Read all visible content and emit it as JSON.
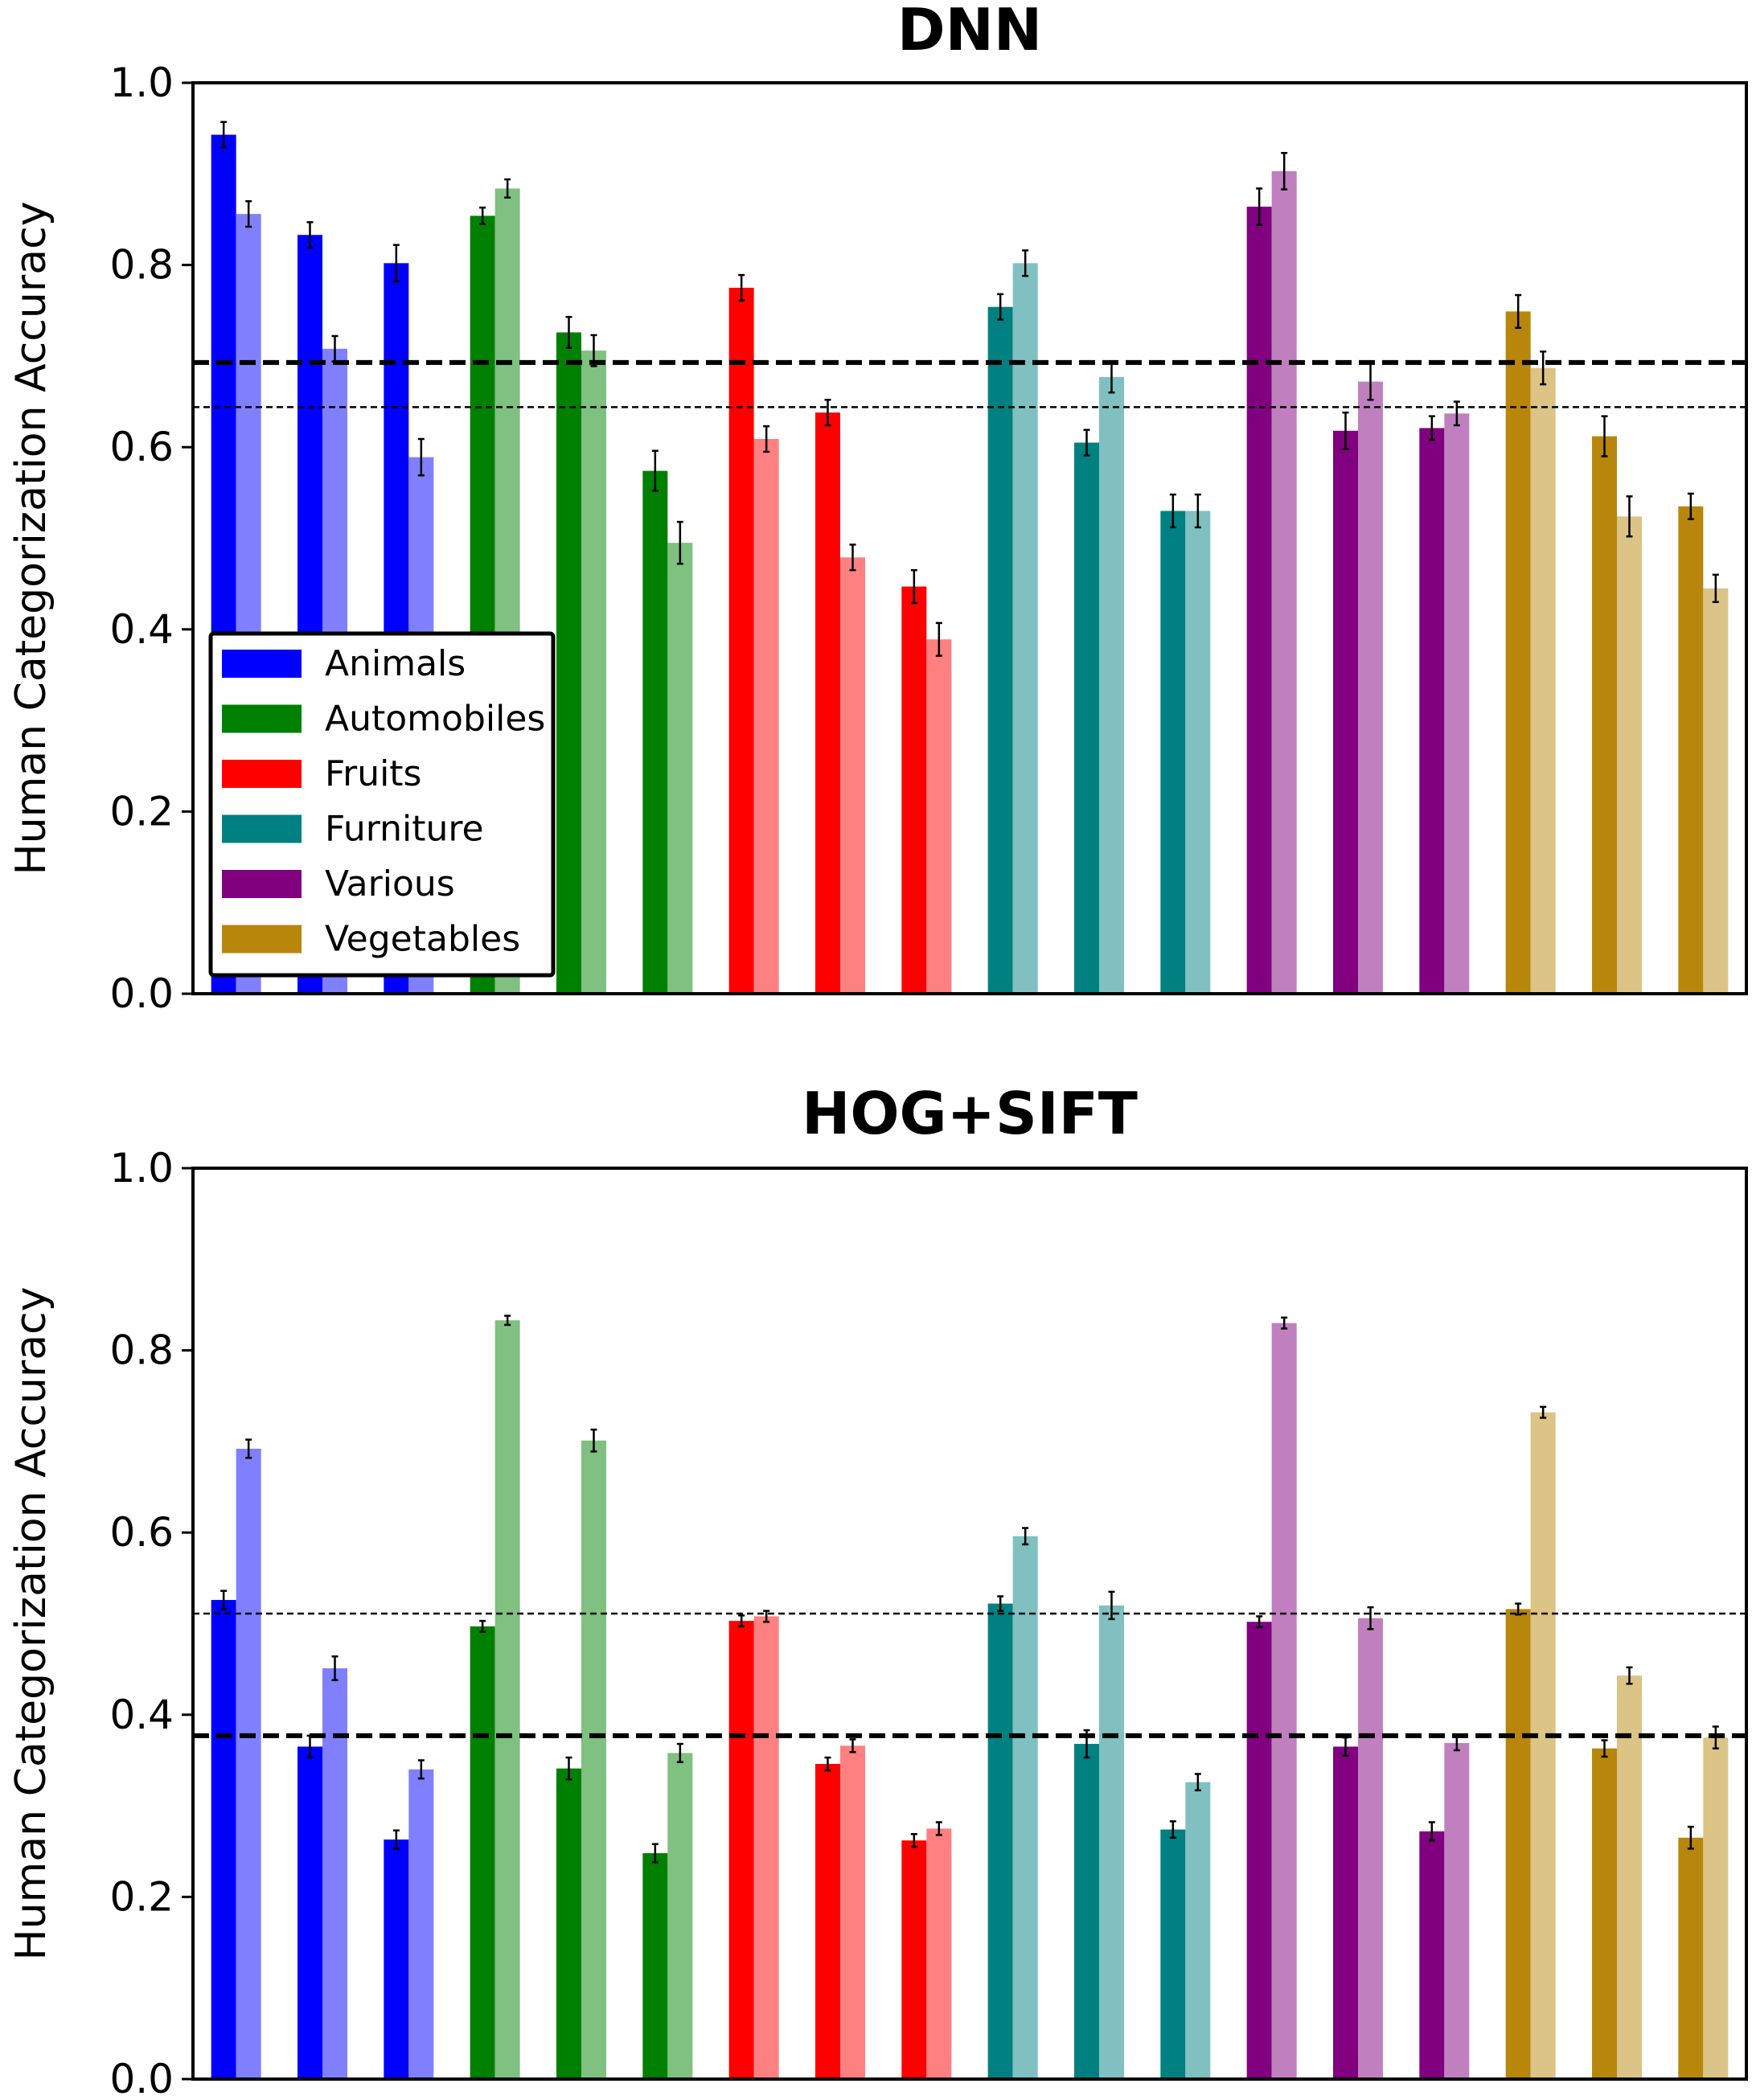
{
  "chart_data": [
    {
      "type": "bar",
      "title": "DNN",
      "xlabel": "",
      "ylabel": "Human Categorization Accuracy",
      "ylim": [
        0,
        1.0
      ],
      "yticks": [
        "0.0",
        "0.2",
        "0.4",
        "0.6",
        "0.8",
        "1.0"
      ],
      "grid": false,
      "legend": {
        "position": "bottom-left",
        "entries": [
          {
            "label": "Animals",
            "color": "#0000ff"
          },
          {
            "label": "Automobiles",
            "color": "#008000"
          },
          {
            "label": "Fruits",
            "color": "#ff0000"
          },
          {
            "label": "Furniture",
            "color": "#008080"
          },
          {
            "label": "Various",
            "color": "#800080"
          },
          {
            "label": "Vegetables",
            "color": "#b8860b"
          }
        ]
      },
      "reference_lines": [
        {
          "name": "thick dashed",
          "value": 0.693
        },
        {
          "name": "thin dashed",
          "value": 0.644
        }
      ],
      "groups": [
        {
          "category": "Animals",
          "color": "#0000ff",
          "light_color": "#8080ff",
          "values": [
            0.943,
            0.856
          ],
          "errors": [
            0.014,
            0.014
          ]
        },
        {
          "category": "Animals",
          "color": "#0000ff",
          "light_color": "#8080ff",
          "values": [
            0.833,
            0.708
          ],
          "errors": [
            0.014,
            0.014
          ]
        },
        {
          "category": "Animals",
          "color": "#0000ff",
          "light_color": "#8080ff",
          "values": [
            0.802,
            0.589
          ],
          "errors": [
            0.02,
            0.02
          ]
        },
        {
          "category": "Automobiles",
          "color": "#008000",
          "light_color": "#80c080",
          "values": [
            0.854,
            0.884
          ],
          "errors": [
            0.009,
            0.01
          ]
        },
        {
          "category": "Automobiles",
          "color": "#008000",
          "light_color": "#80c080",
          "values": [
            0.726,
            0.706
          ],
          "errors": [
            0.017,
            0.017
          ]
        },
        {
          "category": "Automobiles",
          "color": "#008000",
          "light_color": "#80c080",
          "values": [
            0.574,
            0.495
          ],
          "errors": [
            0.022,
            0.023
          ]
        },
        {
          "category": "Fruits",
          "color": "#ff0000",
          "light_color": "#ff8080",
          "values": [
            0.775,
            0.609
          ],
          "errors": [
            0.014,
            0.014
          ]
        },
        {
          "category": "Fruits",
          "color": "#ff0000",
          "light_color": "#ff8080",
          "values": [
            0.638,
            0.479
          ],
          "errors": [
            0.014,
            0.014
          ]
        },
        {
          "category": "Fruits",
          "color": "#ff0000",
          "light_color": "#ff8080",
          "values": [
            0.447,
            0.389
          ],
          "errors": [
            0.018,
            0.018
          ]
        },
        {
          "category": "Furniture",
          "color": "#008080",
          "light_color": "#80c0c0",
          "values": [
            0.754,
            0.802
          ],
          "errors": [
            0.014,
            0.014
          ]
        },
        {
          "category": "Furniture",
          "color": "#008080",
          "light_color": "#80c0c0",
          "values": [
            0.605,
            0.677
          ],
          "errors": [
            0.014,
            0.017
          ]
        },
        {
          "category": "Furniture",
          "color": "#008080",
          "light_color": "#80c0c0",
          "values": [
            0.53,
            0.53
          ],
          "errors": [
            0.018,
            0.018
          ]
        },
        {
          "category": "Various",
          "color": "#800080",
          "light_color": "#c080c0",
          "values": [
            0.864,
            0.903
          ],
          "errors": [
            0.02,
            0.02
          ]
        },
        {
          "category": "Various",
          "color": "#800080",
          "light_color": "#c080c0",
          "values": [
            0.618,
            0.672
          ],
          "errors": [
            0.02,
            0.02
          ]
        },
        {
          "category": "Various",
          "color": "#800080",
          "light_color": "#c080c0",
          "values": [
            0.621,
            0.637
          ],
          "errors": [
            0.013,
            0.013
          ]
        },
        {
          "category": "Vegetables",
          "color": "#b8860b",
          "light_color": "#dcc386",
          "values": [
            0.749,
            0.687
          ],
          "errors": [
            0.018,
            0.018
          ]
        },
        {
          "category": "Vegetables",
          "color": "#b8860b",
          "light_color": "#dcc386",
          "values": [
            0.612,
            0.524
          ],
          "errors": [
            0.022,
            0.022
          ]
        },
        {
          "category": "Vegetables",
          "color": "#b8860b",
          "light_color": "#dcc386",
          "values": [
            0.535,
            0.445
          ],
          "errors": [
            0.014,
            0.015
          ]
        }
      ]
    },
    {
      "type": "bar",
      "title": "HOG+SIFT",
      "xlabel": "",
      "ylabel": "Human Categorization Accuracy",
      "ylim": [
        0,
        1.0
      ],
      "yticks": [
        "0.0",
        "0.2",
        "0.4",
        "0.6",
        "0.8",
        "1.0"
      ],
      "grid": false,
      "reference_lines": [
        {
          "name": "thin dashed",
          "value": 0.511
        },
        {
          "name": "thick dashed",
          "value": 0.377
        }
      ],
      "groups": [
        {
          "category": "Animals",
          "color": "#0000ff",
          "light_color": "#8080ff",
          "values": [
            0.526,
            0.692
          ],
          "errors": [
            0.01,
            0.01
          ]
        },
        {
          "category": "Animals",
          "color": "#0000ff",
          "light_color": "#8080ff",
          "values": [
            0.365,
            0.451
          ],
          "errors": [
            0.012,
            0.013
          ]
        },
        {
          "category": "Animals",
          "color": "#0000ff",
          "light_color": "#8080ff",
          "values": [
            0.263,
            0.34
          ],
          "errors": [
            0.01,
            0.01
          ]
        },
        {
          "category": "Automobiles",
          "color": "#008000",
          "light_color": "#80c080",
          "values": [
            0.497,
            0.833
          ],
          "errors": [
            0.006,
            0.005
          ]
        },
        {
          "category": "Automobiles",
          "color": "#008000",
          "light_color": "#80c080",
          "values": [
            0.341,
            0.701
          ],
          "errors": [
            0.012,
            0.012
          ]
        },
        {
          "category": "Automobiles",
          "color": "#008000",
          "light_color": "#80c080",
          "values": [
            0.248,
            0.358
          ],
          "errors": [
            0.01,
            0.01
          ]
        },
        {
          "category": "Fruits",
          "color": "#ff0000",
          "light_color": "#ff8080",
          "values": [
            0.503,
            0.508
          ],
          "errors": [
            0.006,
            0.006
          ]
        },
        {
          "category": "Fruits",
          "color": "#ff0000",
          "light_color": "#ff8080",
          "values": [
            0.346,
            0.366
          ],
          "errors": [
            0.007,
            0.007
          ]
        },
        {
          "category": "Fruits",
          "color": "#ff0000",
          "light_color": "#ff8080",
          "values": [
            0.262,
            0.275
          ],
          "errors": [
            0.007,
            0.007
          ]
        },
        {
          "category": "Furniture",
          "color": "#008080",
          "light_color": "#80c0c0",
          "values": [
            0.522,
            0.596
          ],
          "errors": [
            0.008,
            0.009
          ]
        },
        {
          "category": "Furniture",
          "color": "#008080",
          "light_color": "#80c0c0",
          "values": [
            0.368,
            0.52
          ],
          "errors": [
            0.015,
            0.015
          ]
        },
        {
          "category": "Furniture",
          "color": "#008080",
          "light_color": "#80c0c0",
          "values": [
            0.274,
            0.326
          ],
          "errors": [
            0.009,
            0.009
          ]
        },
        {
          "category": "Various",
          "color": "#800080",
          "light_color": "#c080c0",
          "values": [
            0.502,
            0.83
          ],
          "errors": [
            0.006,
            0.006
          ]
        },
        {
          "category": "Various",
          "color": "#800080",
          "light_color": "#c080c0",
          "values": [
            0.365,
            0.506
          ],
          "errors": [
            0.01,
            0.012
          ]
        },
        {
          "category": "Various",
          "color": "#800080",
          "light_color": "#c080c0",
          "values": [
            0.272,
            0.369
          ],
          "errors": [
            0.01,
            0.008
          ]
        },
        {
          "category": "Vegetables",
          "color": "#b8860b",
          "light_color": "#dcc386",
          "values": [
            0.516,
            0.732
          ],
          "errors": [
            0.006,
            0.006
          ]
        },
        {
          "category": "Vegetables",
          "color": "#b8860b",
          "light_color": "#dcc386",
          "values": [
            0.363,
            0.443
          ],
          "errors": [
            0.009,
            0.009
          ]
        },
        {
          "category": "Vegetables",
          "color": "#b8860b",
          "light_color": "#dcc386",
          "values": [
            0.265,
            0.375
          ],
          "errors": [
            0.012,
            0.012
          ]
        }
      ]
    }
  ]
}
